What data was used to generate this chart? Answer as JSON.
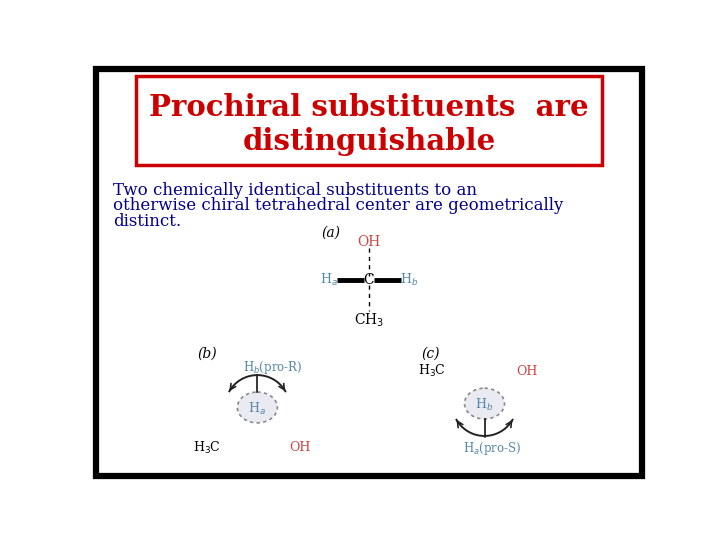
{
  "title_line1": "Prochiral substituents  are",
  "title_line2": "distinguishable",
  "title_color": "#cc0000",
  "title_box_edge_color": "#cc0000",
  "slide_bg": "#ffffff",
  "outer_border_color": "#000000",
  "body_text_color": "#00008B",
  "body_text_line1": "Two chemically identical substituents to an",
  "body_text_line2": "otherwise chiral tetrahedral center are geometrically",
  "body_text_line3": "distinct.",
  "label_a": "(a)",
  "label_b": "(b)",
  "label_c": "(c)",
  "OH_color": "#cc4444",
  "H_color": "#5588aa",
  "black": "#000000",
  "dark": "#333333"
}
